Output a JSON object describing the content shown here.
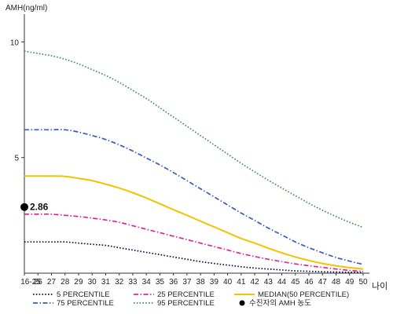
{
  "chart_data": {
    "type": "line",
    "ylabel": "AMH(ng/ml)",
    "xlabel": "나이",
    "x": [
      "16-25",
      "26",
      "27",
      "28",
      "29",
      "30",
      "31",
      "32",
      "33",
      "34",
      "35",
      "36",
      "37",
      "38",
      "39",
      "40",
      "41",
      "42",
      "43",
      "44",
      "45",
      "46",
      "47",
      "48",
      "49",
      "50"
    ],
    "y_ticks": [
      5,
      10
    ],
    "ylim": [
      0,
      11.2
    ],
    "grid": false,
    "legend_position": "bottom",
    "series": [
      {
        "name": "5 PERCENTILE",
        "color": "#0a0f45",
        "style": "dotted",
        "values": [
          1.35,
          1.35,
          1.35,
          1.35,
          1.3,
          1.25,
          1.2,
          1.1,
          1.0,
          0.9,
          0.8,
          0.7,
          0.6,
          0.5,
          0.42,
          0.35,
          0.28,
          0.22,
          0.18,
          0.14,
          0.1,
          0.08,
          0.06,
          0.05,
          0.04,
          0.03
        ]
      },
      {
        "name": "25 PERCENTILE",
        "color": "#e0278e",
        "style": "dashdot",
        "values": [
          2.55,
          2.55,
          2.55,
          2.5,
          2.45,
          2.38,
          2.3,
          2.2,
          2.05,
          1.9,
          1.75,
          1.6,
          1.45,
          1.3,
          1.15,
          1.0,
          0.85,
          0.72,
          0.6,
          0.5,
          0.4,
          0.32,
          0.25,
          0.18,
          0.12,
          0.08
        ]
      },
      {
        "name": "MEDIAN(50 PERCENTILE)",
        "color": "#f0c400",
        "style": "solid",
        "values": [
          4.2,
          4.2,
          4.2,
          4.18,
          4.1,
          4.0,
          3.85,
          3.68,
          3.48,
          3.25,
          3.0,
          2.75,
          2.5,
          2.25,
          2.0,
          1.75,
          1.5,
          1.3,
          1.08,
          0.88,
          0.7,
          0.55,
          0.42,
          0.32,
          0.24,
          0.18
        ]
      },
      {
        "name": "75 PERCENTILE",
        "color": "#3a5bc0",
        "style": "dashdot",
        "values": [
          6.2,
          6.2,
          6.2,
          6.2,
          6.1,
          5.95,
          5.78,
          5.55,
          5.28,
          4.98,
          4.68,
          4.35,
          4.0,
          3.65,
          3.3,
          2.95,
          2.6,
          2.28,
          1.95,
          1.65,
          1.35,
          1.1,
          0.88,
          0.68,
          0.52,
          0.38
        ]
      },
      {
        "name": "95 PERCENTILE",
        "color": "#3f8f55",
        "style": "dotted",
        "values": [
          9.6,
          9.5,
          9.4,
          9.25,
          9.05,
          8.8,
          8.55,
          8.25,
          7.9,
          7.55,
          7.15,
          6.75,
          6.35,
          5.95,
          5.55,
          5.15,
          4.75,
          4.38,
          4.02,
          3.68,
          3.35,
          3.02,
          2.72,
          2.45,
          2.2,
          1.98
        ]
      }
    ],
    "annotation": {
      "label": "2.86",
      "x": "16-25",
      "y": 2.86,
      "legend": "수진자의 AMH 농도"
    }
  }
}
